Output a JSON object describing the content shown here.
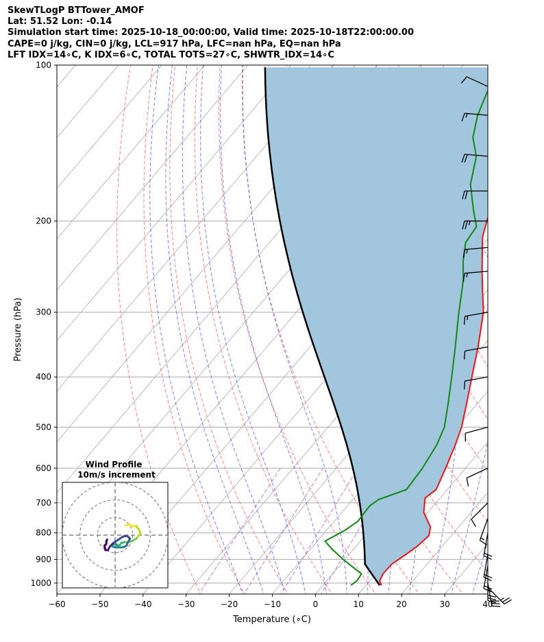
{
  "header": {
    "line1": "SkewTLogP BTTower_AMOF",
    "line2": "Lat: 51.52   Lon: -0.14",
    "line3": "Simulation start time: 2025-10-18_00:00:00, Valid time: 2025-10-18T22:00:00.00",
    "line4": "CAPE=0 j/kg, CIN=0 j/kg, LCL=917 hPa, LFC=nan hPa, EQ=nan hPa",
    "line5": "LFT IDX=14∘C, K IDX=6∘C, TOTAL TOTS=27∘C, SHWTR_IDX=14∘C"
  },
  "colors": {
    "temperature": "#ee1111",
    "dewpoint": "#118811",
    "parcel": "#000000",
    "cape_fill": "#a3c6df",
    "dry_adiabat": "#ff5555",
    "moist_adiabat": "#4455ff",
    "mixing_ratio": "#aa44cc",
    "isotherm": "#aaaaaa"
  },
  "chart_data": {
    "type": "skewt",
    "title": "SkewTLogP BTTower_AMOF",
    "xlabel": "Temperature (∘C)",
    "ylabel": "Pressure (hPa)",
    "xlim": [
      -60,
      40
    ],
    "ylim": [
      1050,
      100
    ],
    "x_ticks": [
      "−60",
      "−50",
      "−40",
      "−30",
      "−20",
      "−10",
      "0",
      "10",
      "20",
      "30",
      "40"
    ],
    "x_tick_values": [
      -60,
      -50,
      -40,
      -30,
      -20,
      -10,
      0,
      10,
      20,
      30,
      40
    ],
    "y_ticks": [
      "100",
      "200",
      "300",
      "400",
      "500",
      "600",
      "700",
      "800",
      "900",
      "1000"
    ],
    "y_tick_values": [
      100,
      200,
      300,
      400,
      500,
      600,
      700,
      800,
      900,
      1000
    ],
    "temperature": [
      {
        "p": 1010,
        "t": 13.6
      },
      {
        "p": 990,
        "t": 12.3
      },
      {
        "p": 960,
        "t": 11.7
      },
      {
        "p": 920,
        "t": 11.8
      },
      {
        "p": 880,
        "t": 13.2
      },
      {
        "p": 850,
        "t": 14.2
      },
      {
        "p": 810,
        "t": 14.8
      },
      {
        "p": 780,
        "t": 13.5
      },
      {
        "p": 730,
        "t": 9.0
      },
      {
        "p": 685,
        "t": 6.5
      },
      {
        "p": 660,
        "t": 7.4
      },
      {
        "p": 600,
        "t": 5.4
      },
      {
        "p": 540,
        "t": 3.0
      },
      {
        "p": 500,
        "t": 1.0
      },
      {
        "p": 450,
        "t": -2.5
      },
      {
        "p": 400,
        "t": -6.5
      },
      {
        "p": 350,
        "t": -11.0
      },
      {
        "p": 300,
        "t": -16.6
      },
      {
        "p": 270,
        "t": -21.5
      },
      {
        "p": 250,
        "t": -25.0
      },
      {
        "p": 215,
        "t": -31.6
      },
      {
        "p": 200,
        "t": -33.8
      },
      {
        "p": 185,
        "t": -36.0
      },
      {
        "p": 170,
        "t": -38.8
      },
      {
        "p": 160,
        "t": -41.0
      },
      {
        "p": 150,
        "t": -43.2
      },
      {
        "p": 135,
        "t": -47.0
      },
      {
        "p": 120,
        "t": -50.0
      },
      {
        "p": 112,
        "t": -53.6
      },
      {
        "p": 100,
        "t": -58.3
      }
    ],
    "dewpoint": [
      {
        "p": 1010,
        "t": 6.5
      },
      {
        "p": 990,
        "t": 7.0
      },
      {
        "p": 960,
        "t": 6.7
      },
      {
        "p": 900,
        "t": -0.4
      },
      {
        "p": 860,
        "t": -5.0
      },
      {
        "p": 830,
        "t": -8.2
      },
      {
        "p": 790,
        "t": -5.7
      },
      {
        "p": 760,
        "t": -4.5
      },
      {
        "p": 710,
        "t": -4.8
      },
      {
        "p": 690,
        "t": -4.0
      },
      {
        "p": 660,
        "t": 0.5
      },
      {
        "p": 600,
        "t": 0.0
      },
      {
        "p": 540,
        "t": -1.3
      },
      {
        "p": 500,
        "t": -3.0
      },
      {
        "p": 450,
        "t": -6.8
      },
      {
        "p": 400,
        "t": -11.2
      },
      {
        "p": 350,
        "t": -16.3
      },
      {
        "p": 300,
        "t": -22.3
      },
      {
        "p": 260,
        "t": -27.6
      },
      {
        "p": 240,
        "t": -31.2
      },
      {
        "p": 220,
        "t": -34.5
      },
      {
        "p": 205,
        "t": -35.1
      },
      {
        "p": 190,
        "t": -39.2
      },
      {
        "p": 170,
        "t": -44.8
      },
      {
        "p": 150,
        "t": -49.0
      },
      {
        "p": 138,
        "t": -53.5
      },
      {
        "p": 125,
        "t": -56.8
      },
      {
        "p": 112,
        "t": -59.3
      },
      {
        "p": 100,
        "t": -62.6
      }
    ],
    "parcel_start": {
      "p": 1010,
      "t": 13.2
    },
    "lcl_hPa": 917,
    "hodograph": {
      "title_line1": "Wind Profile",
      "title_line2": "10m/s increment",
      "rings_ms": [
        10,
        20,
        30
      ],
      "range_ms": 30,
      "points": [
        [
          6.0,
          -5.5
        ],
        [
          8.0,
          -6.0
        ],
        [
          9.5,
          -5.0
        ],
        [
          12.0,
          -5.2
        ],
        [
          13.5,
          -3.0
        ],
        [
          14.5,
          -1.0
        ],
        [
          12.0,
          2.0
        ],
        [
          9.5,
          3.5
        ],
        [
          7.5,
          4.0
        ],
        [
          5.0,
          4.0
        ],
        [
          3.5,
          4.5
        ],
        [
          2.5,
          5.8
        ],
        [
          1.0,
          5.8
        ],
        [
          0.5,
          5.0
        ],
        [
          -1.0,
          5.0
        ],
        [
          -1.5,
          6.5
        ],
        [
          0.0,
          7.0
        ],
        [
          3.0,
          7.0
        ],
        [
          5.0,
          6.8
        ],
        [
          6.5,
          6.0
        ],
        [
          7.0,
          4.5
        ],
        [
          8.0,
          3.0
        ],
        [
          8.5,
          2.0
        ],
        [
          7.0,
          0.5
        ],
        [
          4.5,
          0.8
        ],
        [
          -1.0,
          4.5
        ],
        [
          -3.0,
          6.5
        ],
        [
          -4.0,
          8.5
        ],
        [
          -5.5,
          8.5
        ],
        [
          -6.0,
          6.0
        ],
        [
          -5.0,
          5.0
        ],
        [
          -5.0,
          3.5
        ],
        [
          -4.5,
          2.5
        ]
      ]
    },
    "wind_barbs": [
      {
        "p": 1020,
        "speed_kt": 25,
        "dir_deg": 135
      },
      {
        "p": 1000,
        "speed_kt": 30,
        "dir_deg": 170
      },
      {
        "p": 975,
        "speed_kt": 30,
        "dir_deg": 180
      },
      {
        "p": 925,
        "speed_kt": 20,
        "dir_deg": 190
      },
      {
        "p": 880,
        "speed_kt": 20,
        "dir_deg": 190
      },
      {
        "p": 800,
        "speed_kt": 20,
        "dir_deg": 190
      },
      {
        "p": 750,
        "speed_kt": 15,
        "dir_deg": 200
      },
      {
        "p": 700,
        "speed_kt": 10,
        "dir_deg": 225
      },
      {
        "p": 600,
        "speed_kt": 10,
        "dir_deg": 245
      },
      {
        "p": 500,
        "speed_kt": 10,
        "dir_deg": 255
      },
      {
        "p": 400,
        "speed_kt": 10,
        "dir_deg": 260
      },
      {
        "p": 350,
        "speed_kt": 10,
        "dir_deg": 260
      },
      {
        "p": 300,
        "speed_kt": 15,
        "dir_deg": 260
      },
      {
        "p": 250,
        "speed_kt": 15,
        "dir_deg": 265
      },
      {
        "p": 225,
        "speed_kt": 15,
        "dir_deg": 265
      },
      {
        "p": 200,
        "speed_kt": 25,
        "dir_deg": 270
      },
      {
        "p": 175,
        "speed_kt": 20,
        "dir_deg": 270
      },
      {
        "p": 150,
        "speed_kt": 20,
        "dir_deg": 275
      },
      {
        "p": 125,
        "speed_kt": 15,
        "dir_deg": 275
      },
      {
        "p": 110,
        "speed_kt": 10,
        "dir_deg": 295
      }
    ]
  }
}
